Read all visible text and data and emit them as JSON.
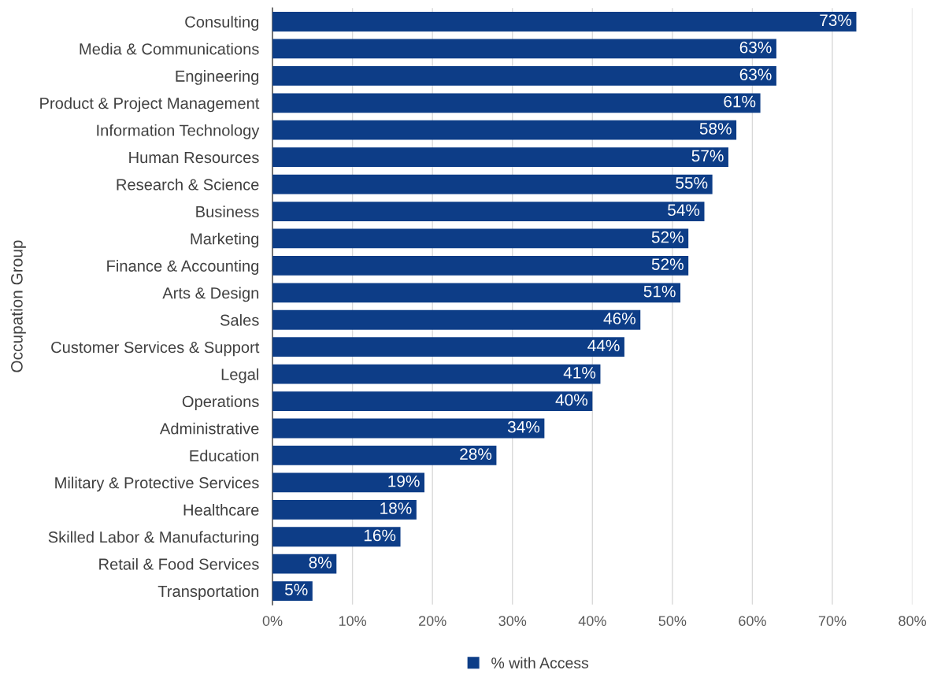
{
  "chart_data": {
    "type": "bar",
    "orientation": "horizontal",
    "ylabel": "Occupation Group",
    "categories": [
      "Consulting",
      "Media & Communications",
      "Engineering",
      "Product & Project Management",
      "Information Technology",
      "Human Resources",
      "Research & Science",
      "Business",
      "Marketing",
      "Finance & Accounting",
      "Arts & Design",
      "Sales",
      "Customer Services & Support",
      "Legal",
      "Operations",
      "Administrative",
      "Education",
      "Military & Protective Services",
      "Healthcare",
      "Skilled Labor & Manufacturing",
      "Retail & Food Services",
      "Transportation"
    ],
    "series": [
      {
        "name": "% with Access",
        "color": "#0d3d87",
        "values": [
          73,
          63,
          63,
          61,
          58,
          57,
          55,
          54,
          52,
          52,
          51,
          46,
          44,
          41,
          40,
          34,
          28,
          19,
          18,
          16,
          8,
          5
        ],
        "value_labels": [
          "73%",
          "63%",
          "63%",
          "61%",
          "58%",
          "57%",
          "55%",
          "54%",
          "52%",
          "52%",
          "51%",
          "46%",
          "44%",
          "41%",
          "40%",
          "34%",
          "28%",
          "19%",
          "18%",
          "16%",
          "8%",
          "5%"
        ]
      }
    ],
    "xlim": [
      0,
      80
    ],
    "xticks": [
      {
        "value": 0,
        "label": "0%"
      },
      {
        "value": 10,
        "label": "10%"
      },
      {
        "value": 20,
        "label": "20%"
      },
      {
        "value": 30,
        "label": "30%"
      },
      {
        "value": 40,
        "label": "40%"
      },
      {
        "value": 50,
        "label": "50%"
      },
      {
        "value": 60,
        "label": "60%"
      },
      {
        "value": 70,
        "label": "70%"
      },
      {
        "value": 80,
        "label": "80%"
      }
    ],
    "grid": "x",
    "legend": "bottom"
  }
}
